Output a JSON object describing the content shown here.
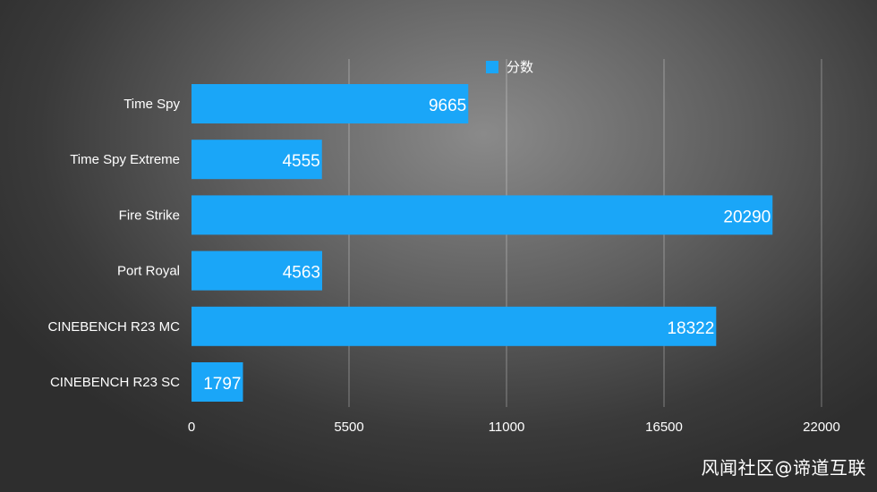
{
  "chart_data": {
    "type": "bar",
    "orientation": "horizontal",
    "categories": [
      "Time Spy",
      "Time Spy Extreme",
      "Fire Strike",
      "Port Royal",
      "CINEBENCH R23 MC",
      "CINEBENCH R23 SC"
    ],
    "series": [
      {
        "name": "分数",
        "values": [
          9665,
          4555,
          20290,
          4563,
          18322,
          1797
        ],
        "color": "#1aa6f8"
      }
    ],
    "xlim": [
      0,
      22000
    ],
    "xticks": [
      0,
      5500,
      11000,
      16500,
      22000
    ],
    "grid": true,
    "legend_position": "top-center",
    "data_labels": true
  },
  "watermark": "风闻社区@谛道互联"
}
